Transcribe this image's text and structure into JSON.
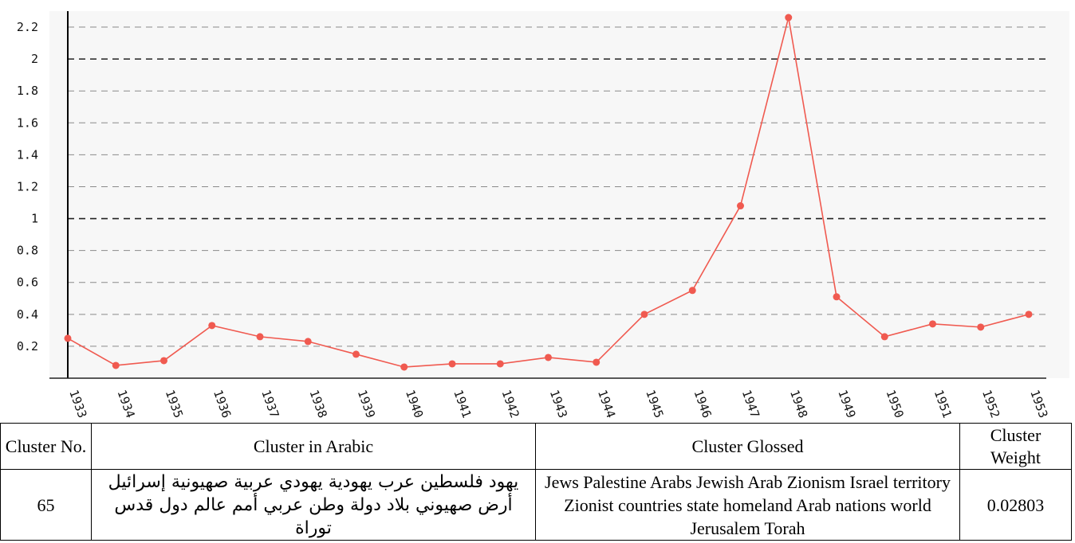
{
  "chart_data": {
    "type": "line",
    "x": [
      "1933",
      "1934",
      "1935",
      "1936",
      "1937",
      "1938",
      "1939",
      "1940",
      "1941",
      "1942",
      "1943",
      "1944",
      "1945",
      "1946",
      "1947",
      "1948",
      "1949",
      "1950",
      "1951",
      "1952",
      "1953"
    ],
    "series": [
      {
        "values": [
          0.25,
          0.08,
          0.11,
          0.33,
          0.26,
          0.23,
          0.15,
          0.07,
          0.09,
          0.09,
          0.13,
          0.1,
          0.4,
          0.55,
          1.08,
          2.26,
          0.51,
          0.26,
          0.34,
          0.32,
          0.4
        ],
        "color": "#f05a50"
      }
    ],
    "y_ticks": [
      "0.2",
      "0.4",
      "0.6",
      "0.8",
      "1",
      "1.2",
      "1.4",
      "1.6",
      "1.8",
      "2",
      "2.2"
    ],
    "ylim": [
      0,
      2.3
    ],
    "grid": true,
    "background": "#f7f7f7"
  },
  "table": {
    "headers": {
      "no": "Cluster No.",
      "arabic": "Cluster in Arabic",
      "glossed": "Cluster Glossed",
      "weight": "Cluster Weight"
    },
    "row": {
      "no": "65",
      "arabic": "يهود فلسطين عرب يهودية يهودي عربية صهيونية إسرائيل أرض صهيوني بلاد دولة وطن عربي أمم عالم دول قدس توراة",
      "glossed": "Jews Palestine Arabs Jewish Arab Zionism Israel territory Zionist countries state homeland Arab nations world Jerusalem Torah",
      "weight": "0.02803"
    }
  }
}
